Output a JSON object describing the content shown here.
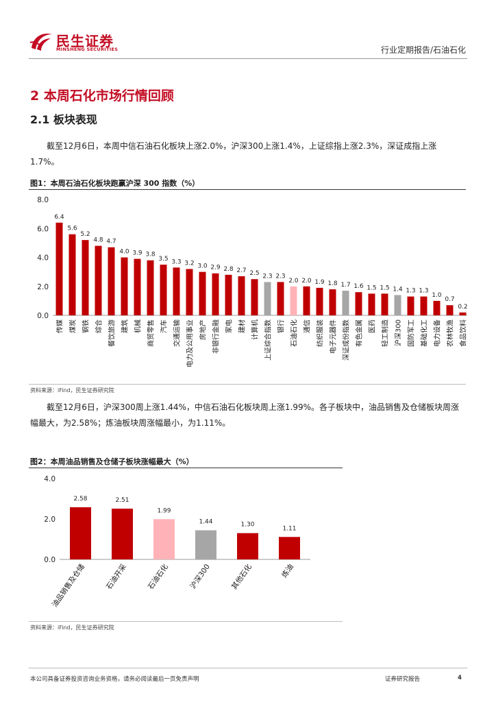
{
  "header": {
    "logo_cn": "民生证券",
    "logo_en": "MINSHENG SECURITIES",
    "report_type": "行业定期报告/石油石化"
  },
  "section": {
    "title": "2 本周石化市场行情回顾",
    "subtitle": "2.1 板块表现"
  },
  "paragraphs": {
    "p1": "截至12月6日，本周中信石油石化板块上涨2.0%，沪深300上涨1.4%，上证综指上涨2.3%，深证成指上涨1.7%。",
    "p2": "截至12月6日，沪深300周上涨1.44%，中信石油石化板块周上涨1.99%。各子板块中，油品销售及仓储板块周涨幅最大，为2.58%；炼油板块周涨幅最小，为1.11%。"
  },
  "figures": {
    "fig1_title": "图1：本周石油石化板块跑赢沪深 300 指数（%）",
    "fig1_source": "资料来源：iFind，民生证券研究院",
    "fig2_title": "图2：本周油品销售及仓储子板块涨幅最大（%）",
    "fig2_source": "资料来源：iFind，民生证券研究院"
  },
  "colors": {
    "brand_red": "#c30d23",
    "bar_red": "#c00000",
    "bar_pink": "#ffb3b8",
    "bar_gray": "#a6a6a6"
  },
  "chart_data": [
    {
      "type": "bar",
      "categories": [
        "传媒",
        "煤炭",
        "钢铁",
        "综合",
        "餐饮旅游",
        "建筑",
        "机械",
        "商贸零售",
        "汽车",
        "交通运输",
        "电力及公用事业",
        "房地产",
        "非银行金融",
        "家电",
        "建材",
        "计算机",
        "上证综合指数",
        "银行",
        "石油石化",
        "通信",
        "纺织服装",
        "电子元器件",
        "深证成份指数",
        "有色金属",
        "医药",
        "轻工制造",
        "沪深300",
        "国防军工",
        "基础化工",
        "电力设备",
        "农林牧渔",
        "食品饮料"
      ],
      "values": [
        6.4,
        5.6,
        5.2,
        4.8,
        4.7,
        4.0,
        3.9,
        3.8,
        3.5,
        3.3,
        3.2,
        3.0,
        2.9,
        2.8,
        2.7,
        2.5,
        2.3,
        2.3,
        2.0,
        2.0,
        1.9,
        1.8,
        1.7,
        1.6,
        1.5,
        1.5,
        1.4,
        1.3,
        1.3,
        1.0,
        0.7,
        0.2
      ],
      "value_labels": [
        "6.4",
        "5.6",
        "5.2",
        "4.8",
        "4.7",
        "4.0",
        "3.9",
        "3.8",
        "3.5",
        "3.3",
        "3.2",
        "3.0",
        "2.9",
        "2.8",
        "2.7",
        "2.5",
        "2.3",
        "2.3",
        "2.0",
        "2.0",
        "1.9",
        "1.8",
        "1.7",
        "1.6",
        "1.5",
        "1.5",
        "1.4",
        "1.3",
        "1.3",
        "1.0",
        "0.7",
        "0.2"
      ],
      "highlight": {
        "石油石化": "pink",
        "上证综合指数": "gray",
        "深证成份指数": "gray",
        "沪深300": "gray"
      },
      "ylim": [
        0,
        8
      ],
      "yticks": [
        "0.0",
        "2.0",
        "4.0",
        "6.0",
        "8.0"
      ],
      "grid": false
    },
    {
      "type": "bar",
      "categories": [
        "油品销售及仓储",
        "石油开采",
        "石油石化",
        "沪深300",
        "其他石化",
        "炼油"
      ],
      "values": [
        2.58,
        2.51,
        1.99,
        1.44,
        1.3,
        1.11
      ],
      "value_labels": [
        "2.58",
        "2.51",
        "1.99",
        "1.44",
        "1.30",
        "1.11"
      ],
      "highlight": {
        "石油石化": "pink",
        "沪深300": "gray"
      },
      "ylim": [
        0,
        4
      ],
      "yticks": [
        "0.0",
        "2.0",
        "4.0"
      ],
      "grid": false
    }
  ],
  "footer": {
    "disclaimer": "本公司具备证券投资咨询业务资格，请务必阅读最后一页免责声明",
    "label": "证券研究报告",
    "page": "4"
  }
}
